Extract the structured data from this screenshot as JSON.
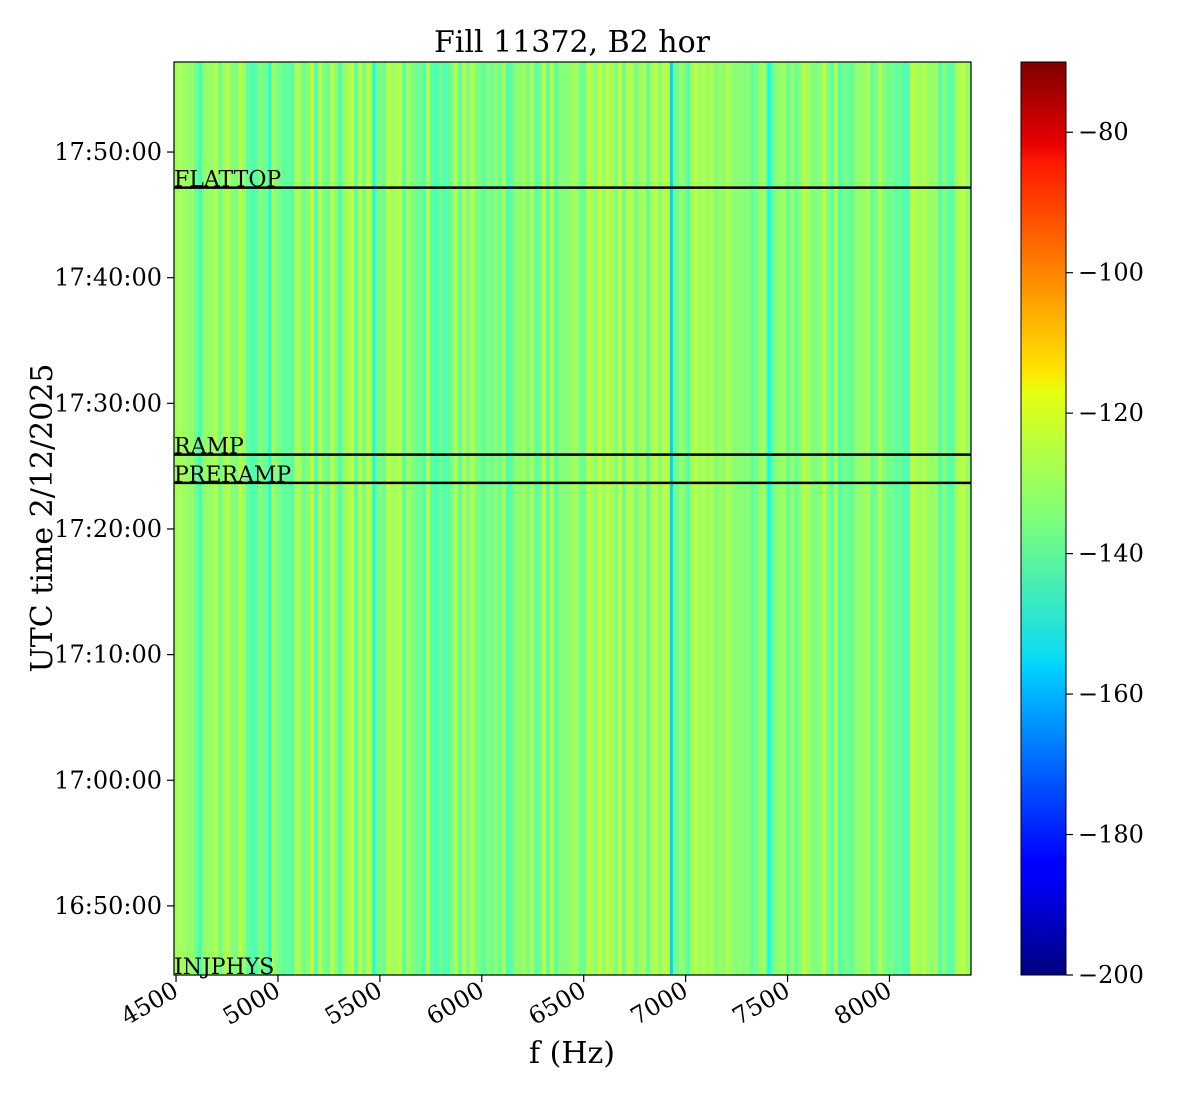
{
  "chart_data": {
    "type": "heatmap",
    "title": "Fill 11372, B2 hor",
    "xlabel": "f (Hz)",
    "ylabel": "UTC time 2/12/2025",
    "xlim": [
      4490,
      8400
    ],
    "ylim": [
      "16:44:30",
      "17:57:10"
    ],
    "x_ticks": [
      "4500",
      "5000",
      "5500",
      "6000",
      "6500",
      "7000",
      "7500",
      "8000"
    ],
    "y_ticks": [
      "16:50:00",
      "17:00:00",
      "17:10:00",
      "17:20:00",
      "17:30:00",
      "17:40:00",
      "17:50:00"
    ],
    "colorbar": {
      "colormap": "jet",
      "range": [
        -200,
        -70
      ],
      "ticks": [
        "−80",
        "−100",
        "−120",
        "−140",
        "−160",
        "−180",
        "−200"
      ]
    },
    "value_range_typical": [
      -145,
      -125
    ],
    "notable_lines_hz": [
      {
        "f": 6930,
        "value": -157
      },
      {
        "f": 7410,
        "value": -150
      },
      {
        "f": 4960,
        "value": -148
      },
      {
        "f": 5470,
        "value": -149
      }
    ],
    "phase_markers": [
      {
        "label": "FLATTOP",
        "time": "17:47:10"
      },
      {
        "label": "RAMP",
        "time": "17:25:55"
      },
      {
        "label": "PRERAMP",
        "time": "17:23:40"
      },
      {
        "label": "INJPHYS",
        "time": "16:44:30"
      }
    ],
    "marker_color": "#000000"
  }
}
